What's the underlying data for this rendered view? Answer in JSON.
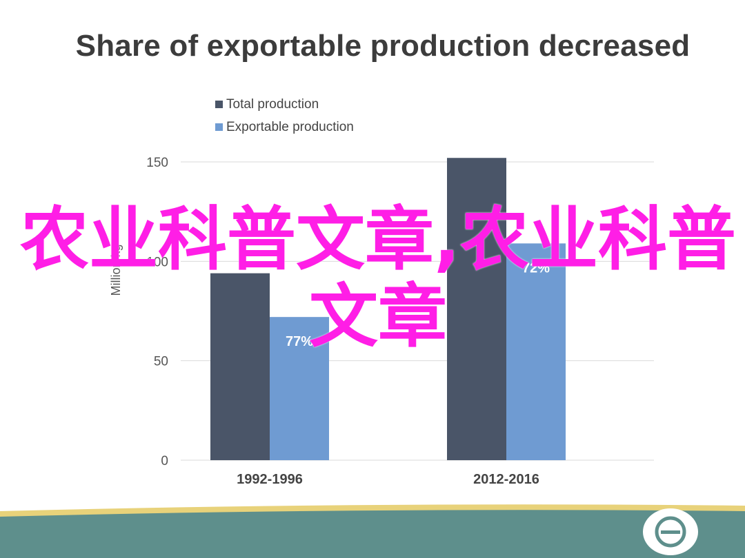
{
  "title": "Share of exportable production decreased",
  "watermark": "农业科普文章,农业科普文章",
  "chart_data": {
    "type": "bar",
    "categories": [
      "1992-1996",
      "2012-2016"
    ],
    "series": [
      {
        "name": "Total production",
        "values": [
          94,
          152
        ],
        "color": "#4a5568"
      },
      {
        "name": "Exportable production",
        "values": [
          72,
          109
        ],
        "color": "#6f9bd2"
      }
    ],
    "data_labels": [
      "77%",
      "72%"
    ],
    "ylabel": "Million kg",
    "ylim": [
      0,
      150
    ],
    "yticks": [
      0,
      50,
      100,
      150
    ],
    "legend": "top-left",
    "grid": true
  },
  "colors": {
    "axis_text": "#555555",
    "grid": "#d9d9d9",
    "label_text": "#ffffff",
    "footer_teal": "#5e8f8c",
    "footer_yellow": "#e8d27a",
    "watermark": "#ff1ee6"
  }
}
